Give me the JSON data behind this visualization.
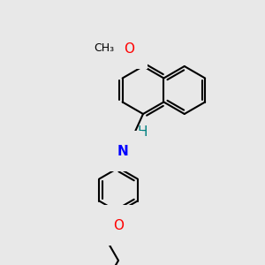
{
  "background_color": "#e8e8e8",
  "bond_color": "#000000",
  "atom_colors": {
    "O": "#ff0000",
    "N": "#0000ff",
    "H_imine": "#008080",
    "C": "#000000"
  },
  "font_size_atoms": 11,
  "fig_size": [
    3.0,
    3.0
  ],
  "dpi": 100
}
